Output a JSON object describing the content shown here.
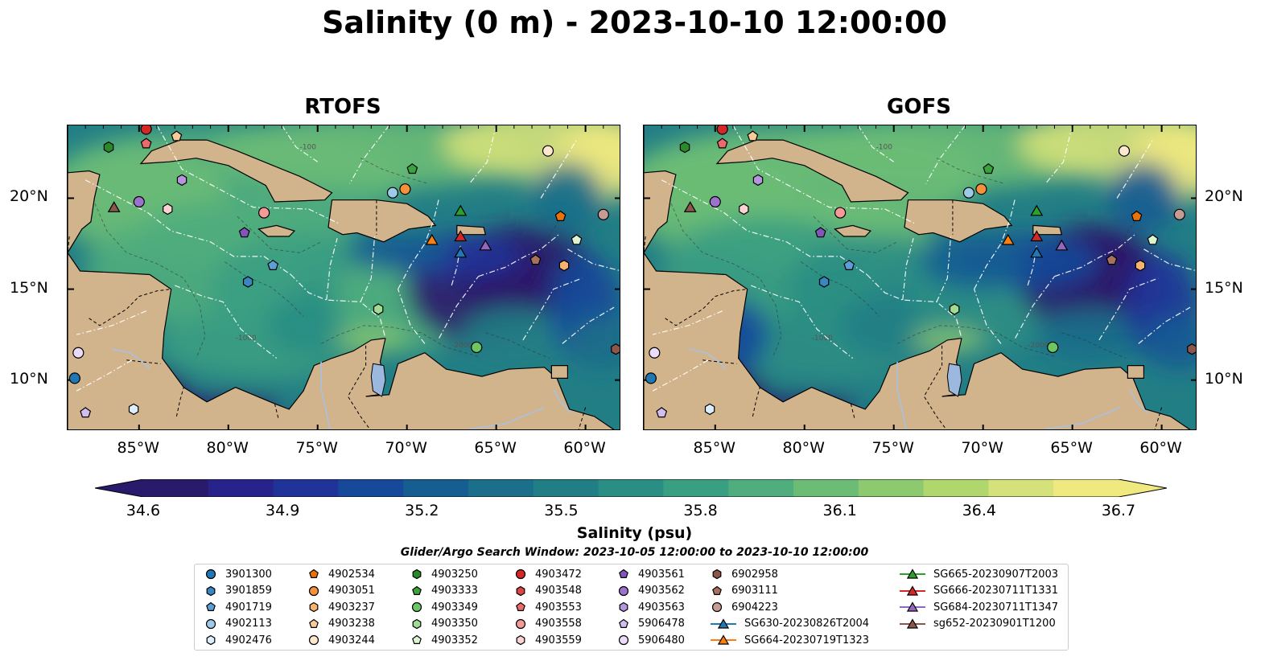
{
  "title": "Salinity (0 m) - 2023-10-10 12:00:00",
  "panels": [
    {
      "title": "RTOFS"
    },
    {
      "title": "GOFS"
    }
  ],
  "axes": {
    "lon_labels": [
      "85°W",
      "80°W",
      "75°W",
      "70°W",
      "65°W",
      "60°W"
    ],
    "lat_labels": [
      "20°N",
      "15°N",
      "10°N"
    ],
    "lon_range": [
      -89,
      -58
    ],
    "lat_range": [
      7.2,
      24
    ]
  },
  "contour_labels": [
    "-100",
    "-1000",
    "-2000"
  ],
  "colorbar": {
    "label": "Salinity (psu)",
    "ticks": [
      "34.6",
      "34.9",
      "35.2",
      "35.5",
      "35.8",
      "36.1",
      "36.4",
      "36.7"
    ],
    "range": [
      34.6,
      36.7
    ],
    "extend": "both",
    "colors": [
      "#2a1a6b",
      "#27238a",
      "#1f3399",
      "#17499a",
      "#165d92",
      "#1b6f8a",
      "#227e85",
      "#2b8e84",
      "#3a9e82",
      "#50ad7d",
      "#6cbc76",
      "#8cc96f",
      "#b0d66e",
      "#d5e17a",
      "#efe97f"
    ]
  },
  "search_window": "Glider/Argo Search Window: 2023-10-05 12:00:00 to 2023-10-10 12:00:00",
  "colors": {
    "land": "#d2b48c",
    "lake": "#9db8de",
    "river": "#a9c1e0",
    "border": "#000000",
    "boundary": "#ffffff"
  },
  "legend": {
    "columns": [
      [
        {
          "label": "3901300",
          "marker": "circle",
          "color": "#1f77b4"
        },
        {
          "label": "3901859",
          "marker": "hexagon",
          "color": "#3987c0"
        },
        {
          "label": "4901719",
          "marker": "pentagon",
          "color": "#5a9fd6"
        },
        {
          "label": "4902113",
          "marker": "circle",
          "color": "#9ecae9"
        },
        {
          "label": "4902476",
          "marker": "hexagon",
          "color": "#dceefb"
        }
      ],
      [
        {
          "label": "4902534",
          "marker": "pentagon",
          "color": "#e8720c"
        },
        {
          "label": "4903051",
          "marker": "circle",
          "color": "#f4913a"
        },
        {
          "label": "4903237",
          "marker": "hexagon",
          "color": "#f7b36f"
        },
        {
          "label": "4903238",
          "marker": "pentagon",
          "color": "#f9cb98"
        },
        {
          "label": "4903244",
          "marker": "circle",
          "color": "#fde8cf"
        }
      ],
      [
        {
          "label": "4903250",
          "marker": "hexagon",
          "color": "#2a8a2a"
        },
        {
          "label": "4903333",
          "marker": "pentagon",
          "color": "#3aa33a"
        },
        {
          "label": "4903349",
          "marker": "circle",
          "color": "#6cc664"
        },
        {
          "label": "4903350",
          "marker": "hexagon",
          "color": "#a0dc92"
        },
        {
          "label": "4903352",
          "marker": "pentagon",
          "color": "#dcf5d0"
        }
      ],
      [
        {
          "label": "4903472",
          "marker": "circle",
          "color": "#d62728"
        },
        {
          "label": "4903548",
          "marker": "hexagon",
          "color": "#e04345"
        },
        {
          "label": "4903553",
          "marker": "pentagon",
          "color": "#ec6a6b"
        },
        {
          "label": "4903558",
          "marker": "circle",
          "color": "#f59a99"
        },
        {
          "label": "4903559",
          "marker": "hexagon",
          "color": "#fbd3d2"
        }
      ],
      [
        {
          "label": "4903561",
          "marker": "pentagon",
          "color": "#8256b8"
        },
        {
          "label": "4903562",
          "marker": "circle",
          "color": "#9c72cc"
        },
        {
          "label": "4903563",
          "marker": "hexagon",
          "color": "#b396dc"
        },
        {
          "label": "5906478",
          "marker": "pentagon",
          "color": "#d2bdf0"
        },
        {
          "label": "5906480",
          "marker": "circle",
          "color": "#ecdcfb"
        }
      ],
      [
        {
          "label": "6902958",
          "marker": "hexagon",
          "color": "#8c564b"
        },
        {
          "label": "6903111",
          "marker": "pentagon",
          "color": "#a8705f"
        },
        {
          "label": "6904223",
          "marker": "circle",
          "color": "#c49c94"
        },
        {
          "label": "SG630-20230826T2004",
          "marker": "triangle-line",
          "color": "#1f77b4"
        },
        {
          "label": "SG664-20230719T1323",
          "marker": "triangle-line",
          "color": "#ff7f0e"
        }
      ],
      [
        {
          "label": "SG665-20230907T2003",
          "marker": "triangle-line",
          "color": "#2ca02c"
        },
        {
          "label": "SG666-20230711T1331",
          "marker": "triangle-line",
          "color": "#d62728"
        },
        {
          "label": "SG684-20230711T1347",
          "marker": "triangle-line",
          "color": "#9467bd"
        },
        {
          "label": "sg652-20230901T1200",
          "marker": "triangle-line",
          "color": "#8c564b"
        }
      ]
    ]
  },
  "markers": [
    {
      "id": "3901300",
      "lon": -88.6,
      "lat": 10.1,
      "marker": "circle",
      "color": "#1f77b4"
    },
    {
      "id": "4902113",
      "lon": -70.8,
      "lat": 20.3,
      "marker": "circle",
      "color": "#9ecae9"
    },
    {
      "id": "4901719",
      "lon": -77.5,
      "lat": 16.3,
      "marker": "pentagon",
      "color": "#5a9fd6"
    },
    {
      "id": "3901859",
      "lon": -78.9,
      "lat": 15.4,
      "marker": "hexagon",
      "color": "#3987c0"
    },
    {
      "id": "4902476",
      "lon": -85.3,
      "lat": 8.4,
      "marker": "hexagon",
      "color": "#dceefb"
    },
    {
      "id": "4903051",
      "lon": -70.1,
      "lat": 20.5,
      "marker": "circle",
      "color": "#f4913a"
    },
    {
      "id": "4902534",
      "lon": -61.4,
      "lat": 19.0,
      "marker": "pentagon",
      "color": "#e8720c"
    },
    {
      "id": "4903237",
      "lon": -61.2,
      "lat": 16.3,
      "marker": "hexagon",
      "color": "#f7b36f"
    },
    {
      "id": "4903238",
      "lon": -82.9,
      "lat": 23.4,
      "marker": "pentagon",
      "color": "#f9cb98"
    },
    {
      "id": "4903244",
      "lon": -62.1,
      "lat": 22.6,
      "marker": "circle",
      "color": "#fde8cf"
    },
    {
      "id": "4903250",
      "lon": -86.7,
      "lat": 22.8,
      "marker": "hexagon",
      "color": "#2a8a2a"
    },
    {
      "id": "4903333",
      "lon": -69.7,
      "lat": 21.6,
      "marker": "pentagon",
      "color": "#3aa33a"
    },
    {
      "id": "4903349",
      "lon": -66.1,
      "lat": 11.8,
      "marker": "circle",
      "color": "#6cc664"
    },
    {
      "id": "4903350",
      "lon": -71.6,
      "lat": 13.9,
      "marker": "hexagon",
      "color": "#a0dc92"
    },
    {
      "id": "4903352",
      "lon": -60.5,
      "lat": 17.7,
      "marker": "pentagon",
      "color": "#dcf5d0"
    },
    {
      "id": "4903472",
      "lon": -84.6,
      "lat": 23.8,
      "marker": "circle",
      "color": "#d62728"
    },
    {
      "id": "4903553",
      "lon": -84.6,
      "lat": 23.0,
      "marker": "pentagon",
      "color": "#ec6a6b"
    },
    {
      "id": "4903558",
      "lon": -78.0,
      "lat": 19.2,
      "marker": "circle",
      "color": "#f59a99"
    },
    {
      "id": "4903559",
      "lon": -83.4,
      "lat": 19.4,
      "marker": "hexagon",
      "color": "#fbd3d2"
    },
    {
      "id": "4903561",
      "lon": -79.1,
      "lat": 18.1,
      "marker": "pentagon",
      "color": "#8256b8"
    },
    {
      "id": "4903562",
      "lon": -85.0,
      "lat": 19.8,
      "marker": "circle",
      "color": "#9c72cc"
    },
    {
      "id": "4903563",
      "lon": -82.6,
      "lat": 21.0,
      "marker": "hexagon",
      "color": "#b396dc"
    },
    {
      "id": "5906478",
      "lon": -88.0,
      "lat": 8.2,
      "marker": "pentagon",
      "color": "#d2bdf0"
    },
    {
      "id": "5906480",
      "lon": -88.4,
      "lat": 11.5,
      "marker": "circle",
      "color": "#ecdcfb"
    },
    {
      "id": "6902958",
      "lon": -58.3,
      "lat": 11.7,
      "marker": "hexagon",
      "color": "#8c564b"
    },
    {
      "id": "6903111",
      "lon": -62.8,
      "lat": 16.6,
      "marker": "pentagon",
      "color": "#a8705f"
    },
    {
      "id": "6904223",
      "lon": -59.0,
      "lat": 19.1,
      "marker": "circle",
      "color": "#c49c94"
    },
    {
      "id": "SG630-20230826T2004",
      "lon": -67.0,
      "lat": 17.0,
      "marker": "triangle",
      "color": "#1f77b4"
    },
    {
      "id": "SG664-20230719T1323",
      "lon": -68.6,
      "lat": 17.7,
      "marker": "triangle",
      "color": "#ff7f0e"
    },
    {
      "id": "SG665-20230907T2003",
      "lon": -67.0,
      "lat": 19.3,
      "marker": "triangle",
      "color": "#2ca02c"
    },
    {
      "id": "SG666-20230711T1331",
      "lon": -67.0,
      "lat": 17.9,
      "marker": "triangle",
      "color": "#d62728"
    },
    {
      "id": "SG684-20230711T1347",
      "lon": -65.6,
      "lat": 17.4,
      "marker": "triangle",
      "color": "#9467bd"
    },
    {
      "id": "sg652-20230901T1200",
      "lon": -86.4,
      "lat": 19.5,
      "marker": "triangle",
      "color": "#8c564b"
    }
  ]
}
